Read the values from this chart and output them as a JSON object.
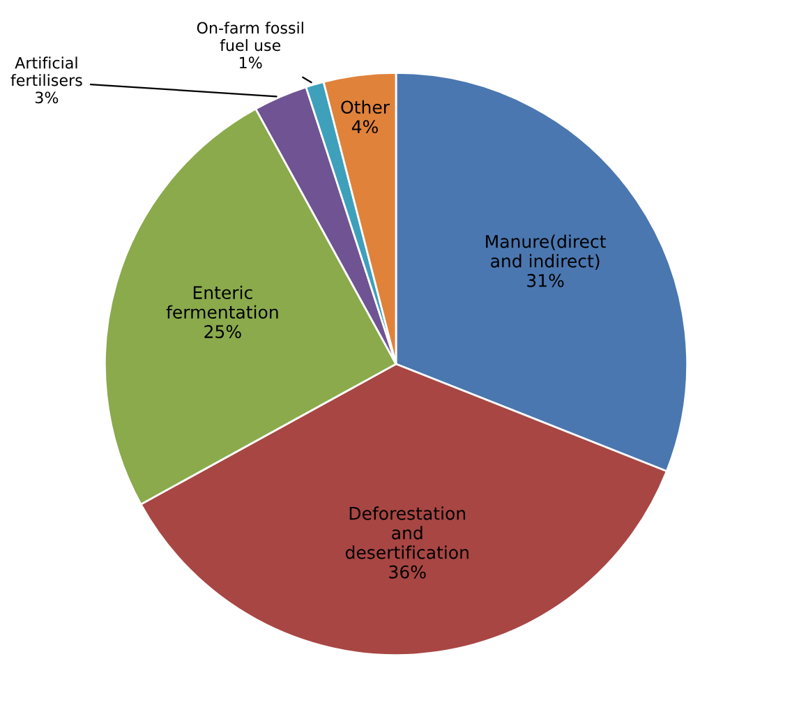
{
  "chart_data": {
    "type": "pie",
    "categories": [
      "Manure(direct\nand indirect)",
      "Deforestation\nand\ndesertification",
      "Enteric\nfermentation",
      "Artificial\nfertilisers",
      "On-farm fossil\nfuel use",
      "Other"
    ],
    "values": [
      31,
      36,
      25,
      3,
      1,
      4
    ],
    "colors": [
      "#4a77b0",
      "#a84643",
      "#8aaa4c",
      "#6f5393",
      "#3fa0bb",
      "#e0823a"
    ],
    "value_labels": [
      "31%",
      "36%",
      "25%",
      "3%",
      "1%",
      "4%"
    ],
    "legend": false
  }
}
